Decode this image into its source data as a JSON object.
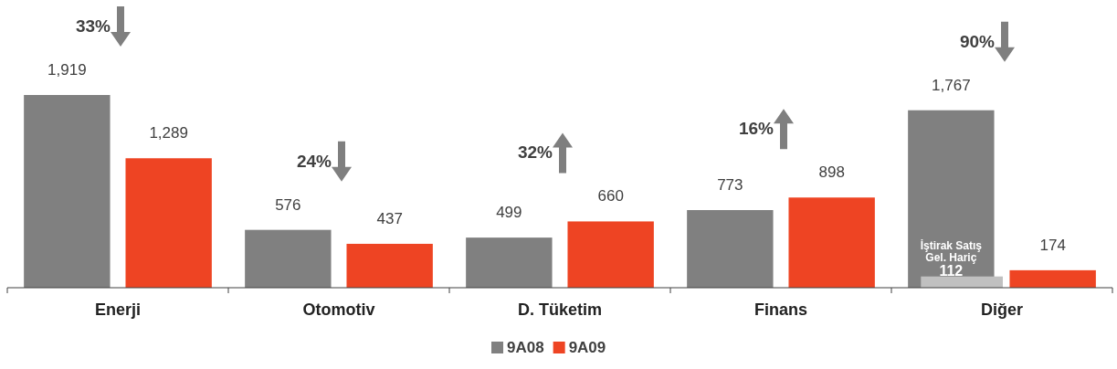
{
  "chart_data": {
    "type": "bar",
    "categories": [
      "Enerji",
      "Otomotiv",
      "D. Tüketim",
      "Finans",
      "Diğer"
    ],
    "series": [
      {
        "name": "9A08",
        "color": "#808080",
        "values": [
          1919,
          576,
          499,
          773,
          1767
        ],
        "value_labels": [
          "1,919",
          "576",
          "499",
          "773",
          "1,767"
        ]
      },
      {
        "name": "9A09",
        "color": "#ee4423",
        "values": [
          1289,
          437,
          660,
          898,
          174
        ],
        "value_labels": [
          "1,289",
          "437",
          "660",
          "898",
          "174"
        ]
      },
      {
        "name": "İştirak Satış Gel. Hariç",
        "color": "#c0c0c0",
        "values": [
          null,
          null,
          null,
          null,
          112
        ],
        "value_labels": [
          null,
          null,
          null,
          null,
          "112"
        ]
      }
    ],
    "legend": "bottom",
    "annotations": [
      "33%",
      "24%",
      "32%",
      "16%",
      "90%"
    ]
  }
}
